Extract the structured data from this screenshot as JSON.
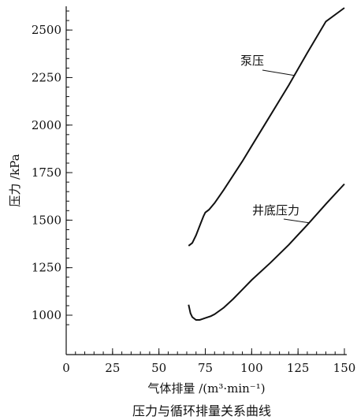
{
  "chart_data": {
    "type": "line",
    "title": "压力与循环排量关系曲线",
    "xlabel": "气体排量 /(m³·min⁻¹)",
    "ylabel": "压力 /kPa",
    "xlim": [
      0,
      150
    ],
    "ylim": [
      900,
      2650
    ],
    "x_major_ticks": [
      0,
      25,
      50,
      75,
      100,
      125,
      150
    ],
    "x_tick_labels": [
      "0",
      "25",
      "50",
      "75",
      "100",
      "125",
      "150"
    ],
    "y_major_ticks": [
      1000,
      1250,
      1500,
      1750,
      2000,
      2250,
      2500
    ],
    "y_tick_labels": [
      "1000",
      "1250",
      "1500",
      "1750",
      "2000",
      "2250",
      "2500"
    ],
    "grid": false,
    "legend": "none",
    "series": [
      {
        "name": "泵压",
        "x": [
          66,
          68,
          70,
          72,
          74,
          75,
          77,
          80,
          85,
          90,
          95,
          100,
          110,
          120,
          130,
          140,
          150
        ],
        "y": [
          1365,
          1380,
          1420,
          1470,
          1520,
          1540,
          1555,
          1590,
          1660,
          1735,
          1810,
          1890,
          2050,
          2210,
          2380,
          2545,
          2715
        ]
      },
      {
        "name": "井底压力",
        "x": [
          66,
          67,
          68,
          70,
          72,
          75,
          78,
          80,
          85,
          90,
          95,
          100,
          110,
          120,
          130,
          140,
          150
        ],
        "y": [
          1055,
          1010,
          990,
          975,
          975,
          985,
          995,
          1005,
          1040,
          1085,
          1135,
          1185,
          1275,
          1370,
          1475,
          1585,
          1690
        ]
      }
    ],
    "annotations": [
      {
        "text": "泵压",
        "series": 0,
        "at_x": 123
      },
      {
        "text": "井底压力",
        "series": 1,
        "at_x": 131
      }
    ]
  }
}
